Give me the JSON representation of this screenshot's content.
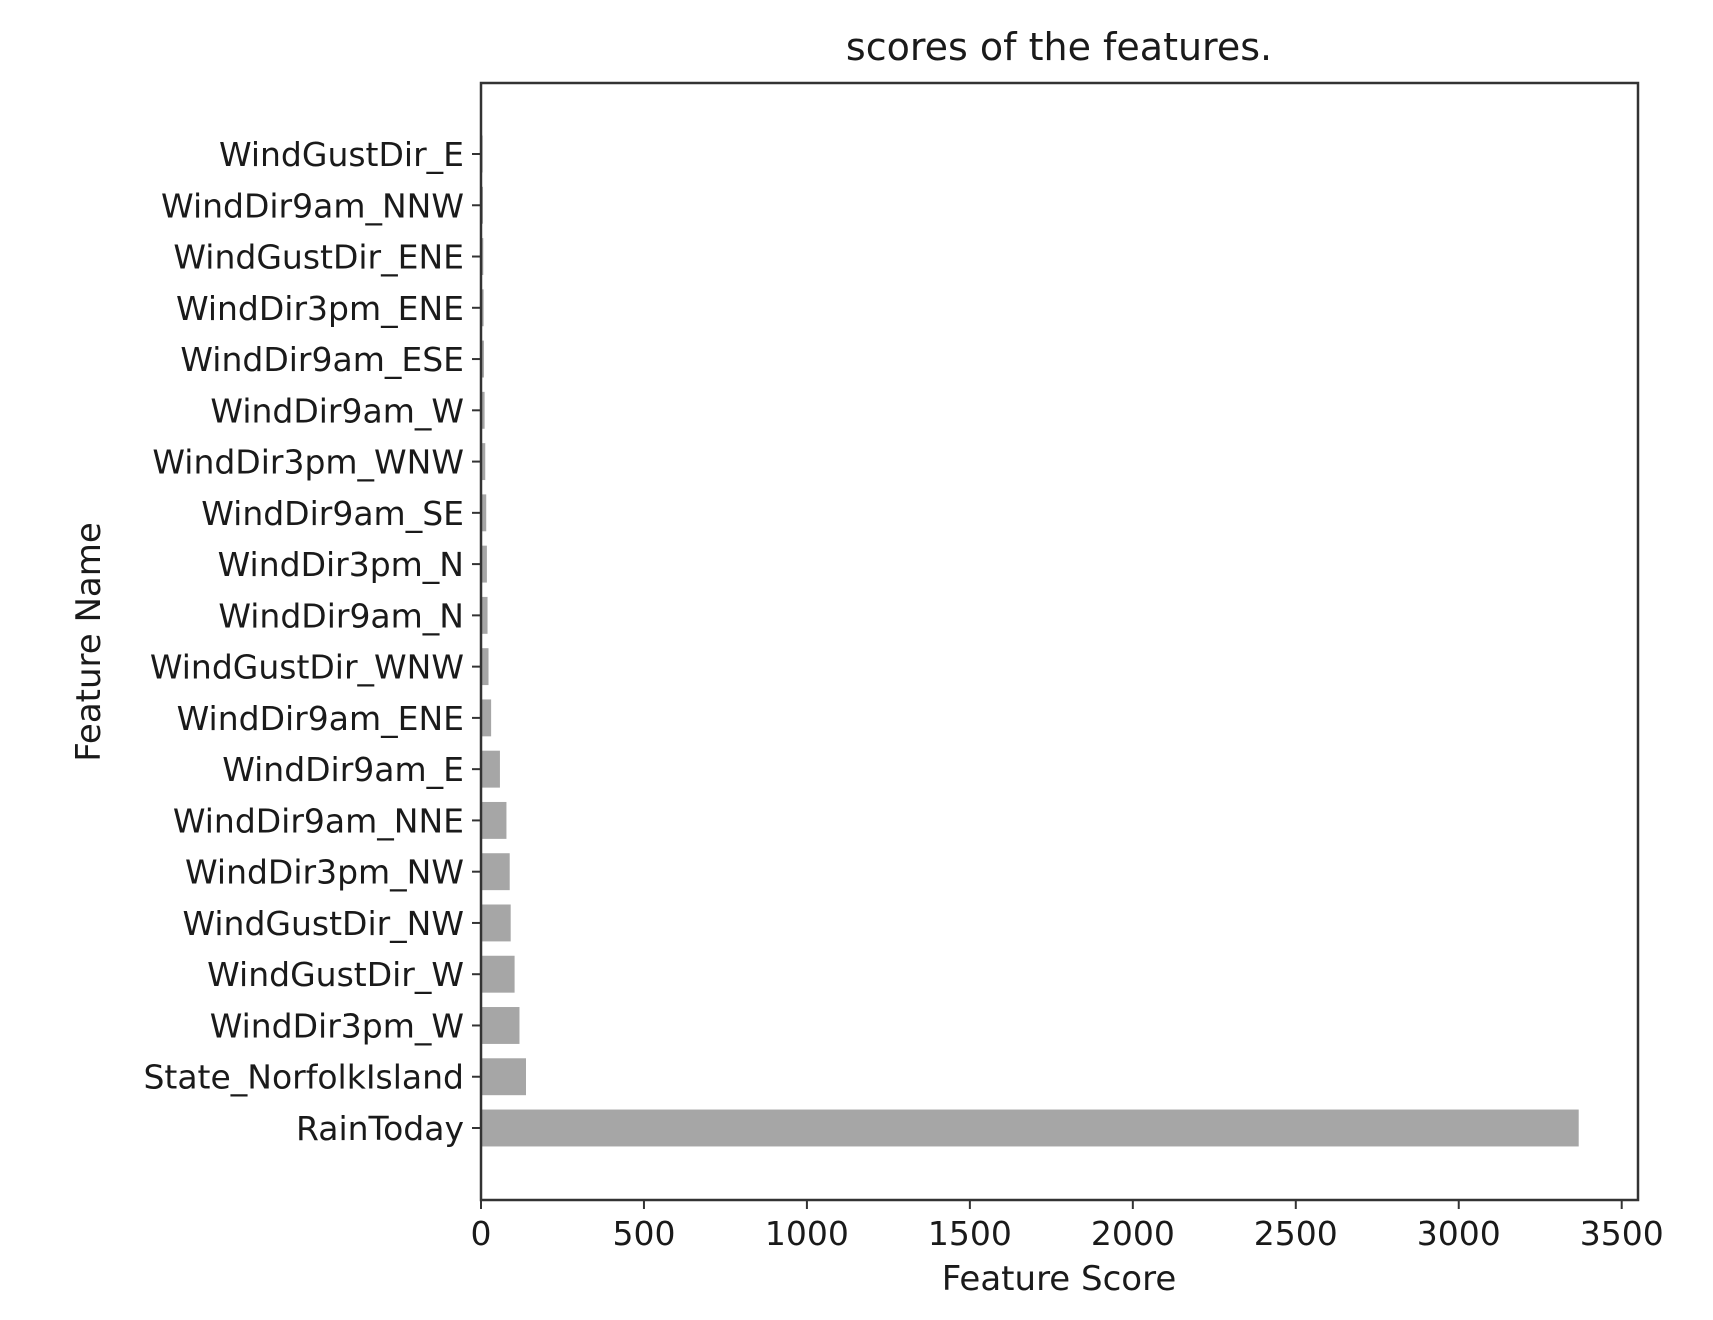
{
  "chart_data": {
    "type": "bar",
    "orientation": "horizontal",
    "title": "scores of the features.",
    "xlabel": "Feature Score",
    "ylabel": "Feature Name",
    "xlim": [
      0,
      3550
    ],
    "xticks": [
      0,
      500,
      1000,
      1500,
      2000,
      2500,
      3000,
      3500
    ],
    "xtick_labels": [
      "0",
      "500",
      "1000",
      "1500",
      "2000",
      "2500",
      "3000",
      "3500"
    ],
    "grid": false,
    "bar_color": "#a6a6a6",
    "categories": [
      "WindGustDir_E",
      "WindDir9am_NNW",
      "WindGustDir_ENE",
      "WindDir3pm_ENE",
      "WindDir9am_ESE",
      "WindDir9am_W",
      "WindDir3pm_WNW",
      "WindDir9am_SE",
      "WindDir3pm_N",
      "WindDir9am_N",
      "WindGustDir_WNW",
      "WindDir9am_ENE",
      "WindDir9am_E",
      "WindDir9am_NNE",
      "WindDir3pm_NW",
      "WindGustDir_NW",
      "WindGustDir_W",
      "WindDir3pm_W",
      "State_NorfolkIsland",
      "RainToday"
    ],
    "values": [
      2,
      3,
      4,
      5,
      6,
      8,
      10,
      13,
      15,
      17,
      20,
      28,
      55,
      75,
      85,
      88,
      100,
      115,
      135,
      3365
    ]
  }
}
